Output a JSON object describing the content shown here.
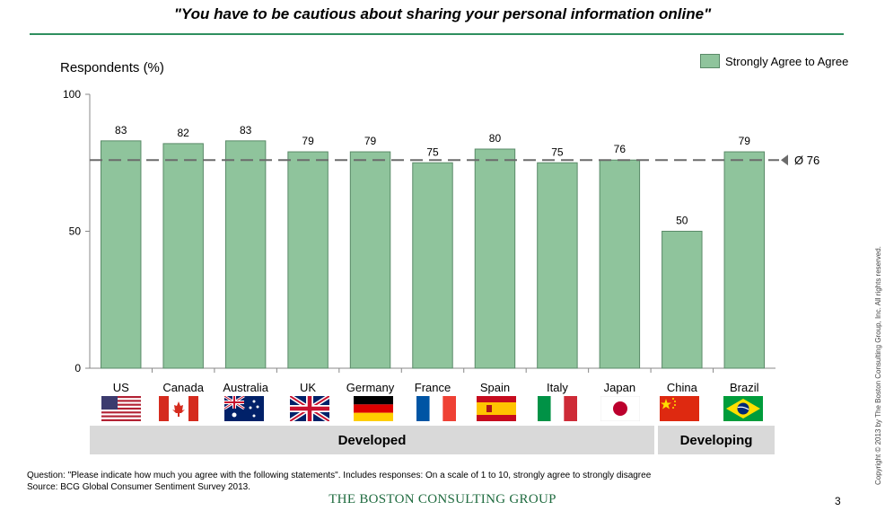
{
  "title": "\"You have to be cautious about sharing your personal information online\"",
  "ylabel": "Respondents (%)",
  "legend_label": "Strongly Agree to Agree",
  "avg_label": "Ø 76",
  "groups": [
    {
      "label": "Developed"
    },
    {
      "label": "Developing"
    }
  ],
  "footnote": {
    "question": "Question: \"Please indicate how much you agree with the following statements\". Includes responses: On a scale of 1 to 10, strongly agree to strongly disagree",
    "source": "Source: BCG Global Consumer Sentiment Survey 2013."
  },
  "footer": {
    "brand": "THE BOSTON CONSULTING GROUP",
    "page": "3",
    "copyright": "Copyright © 2013 by The Boston Consulting Group, Inc. All rights reserved."
  },
  "colors": {
    "bar": "#8fc49c",
    "bar_border": "#5a8a68",
    "rule": "#2f8f5f"
  },
  "chart_data": {
    "type": "bar",
    "categories": [
      "US",
      "Canada",
      "Australia",
      "UK",
      "Germany",
      "France",
      "Spain",
      "Italy",
      "Japan",
      "China",
      "Brazil"
    ],
    "series": [
      {
        "name": "Strongly Agree to Agree",
        "values": [
          83,
          82,
          83,
          79,
          79,
          75,
          80,
          75,
          76,
          50,
          79
        ]
      }
    ],
    "ylabel": "Respondents (%)",
    "ylim": [
      0,
      100
    ],
    "yticks": [
      0,
      50,
      100
    ],
    "reference_line": {
      "value": 76,
      "label": "Ø 76"
    },
    "legend": "top-right",
    "grid": false
  }
}
